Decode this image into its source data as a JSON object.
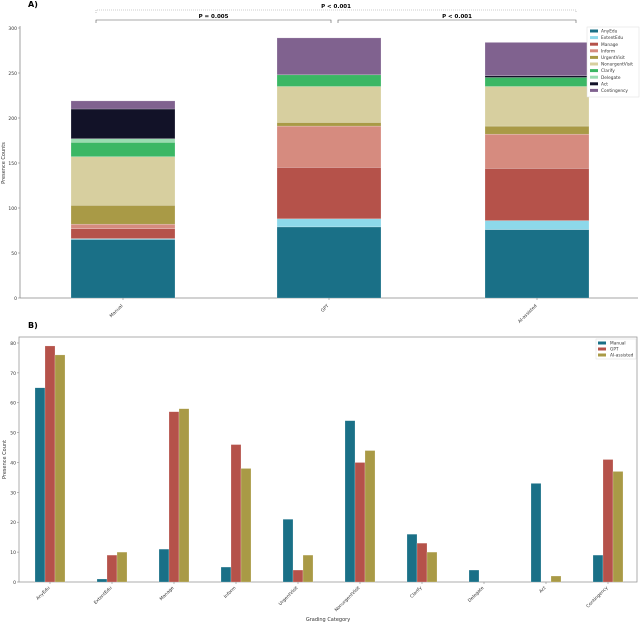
{
  "chart_data": [
    {
      "panel_label": "A)",
      "type": "bar",
      "stacked": true,
      "categories": [
        "Manual",
        "GPT",
        "AI-assisted"
      ],
      "ylabel": "Presence Counts",
      "ylim": [
        0,
        300
      ],
      "yticks": [
        0,
        50,
        100,
        150,
        200,
        250,
        300
      ],
      "legend_position": "top-right",
      "series": [
        {
          "name": "AnyEdu",
          "color": "#1a7087",
          "values": [
            65,
            79,
            76
          ]
        },
        {
          "name": "ExtentEdu",
          "color": "#8dd8ea",
          "values": [
            1,
            9,
            10
          ]
        },
        {
          "name": "Manage",
          "color": "#b5524a",
          "values": [
            11,
            57,
            58
          ]
        },
        {
          "name": "Inform",
          "color": "#d68b7f",
          "values": [
            5,
            46,
            38
          ]
        },
        {
          "name": "UrgentVisit",
          "color": "#a99a46",
          "values": [
            21,
            4,
            9
          ]
        },
        {
          "name": "NonurgentVisit",
          "color": "#d7cf9f",
          "values": [
            54,
            40,
            44
          ]
        },
        {
          "name": "Clarify",
          "color": "#3bb764",
          "values": [
            16,
            13,
            10
          ]
        },
        {
          "name": "Delegate",
          "color": "#99dcb0",
          "values": [
            4,
            0,
            0
          ]
        },
        {
          "name": "Act",
          "color": "#121228",
          "values": [
            33,
            0,
            2
          ]
        },
        {
          "name": "Contingency",
          "color": "#80628f",
          "values": [
            9,
            41,
            37
          ]
        }
      ],
      "annotations": [
        {
          "text": "P < 0.001",
          "from": "Manual",
          "to": "AI-assisted"
        },
        {
          "text": "P = 0.005",
          "from": "Manual",
          "to": "GPT"
        },
        {
          "text": "P < 0.001",
          "from": "GPT",
          "to": "AI-assisted"
        }
      ]
    },
    {
      "panel_label": "B)",
      "type": "bar",
      "stacked": false,
      "categories": [
        "AnyEdu",
        "ExtentEdu",
        "Manage",
        "Inform",
        "UrgentVisit",
        "NonurgentVisit",
        "Clarify",
        "Delegate",
        "Act",
        "Contingency"
      ],
      "xlabel": "Grading Category",
      "ylabel": "Presence Count",
      "ylim": [
        0,
        82
      ],
      "yticks": [
        0,
        10,
        20,
        30,
        40,
        50,
        60,
        70,
        80
      ],
      "legend_position": "top-right",
      "series": [
        {
          "name": "Manual",
          "color": "#1a7087",
          "values": [
            65,
            1,
            11,
            5,
            21,
            54,
            16,
            4,
            33,
            9
          ]
        },
        {
          "name": "GPT",
          "color": "#b5524a",
          "values": [
            79,
            9,
            57,
            46,
            4,
            40,
            13,
            0,
            0,
            41
          ]
        },
        {
          "name": "AI-assisted",
          "color": "#a99a46",
          "values": [
            76,
            10,
            58,
            38,
            9,
            44,
            10,
            0,
            2,
            37
          ]
        }
      ]
    }
  ]
}
